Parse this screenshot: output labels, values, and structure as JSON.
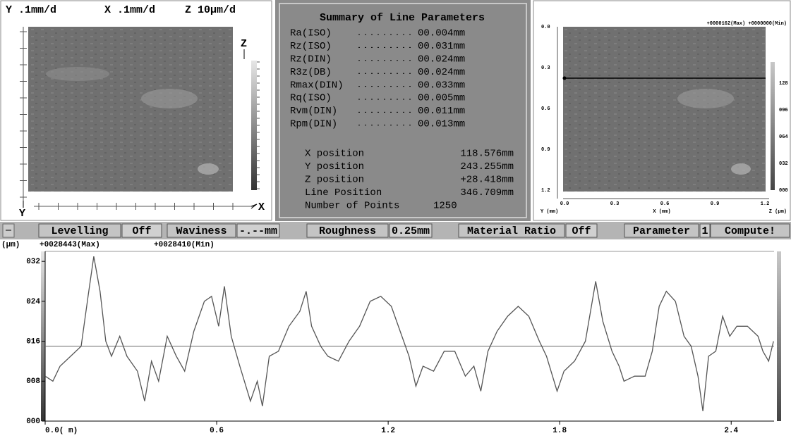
{
  "left_panel": {
    "header": [
      "Y .1mm/d",
      "X .1mm/d",
      "Z 10µm/d"
    ],
    "z_axis": "Z",
    "y_axis": "Y",
    "x_axis": "X"
  },
  "summary": {
    "title": "Summary of Line Parameters",
    "parameters": [
      {
        "name": "Ra(ISO)",
        "value": "00.004mm"
      },
      {
        "name": "Rz(ISO)",
        "value": "00.031mm"
      },
      {
        "name": "Rz(DIN)",
        "value": "00.024mm"
      },
      {
        "name": "R3z(DB)",
        "value": "00.024mm"
      },
      {
        "name": "Rmax(DIN)",
        "value": "00.033mm"
      },
      {
        "name": "Rq(ISO)",
        "value": "00.005mm"
      },
      {
        "name": "Rvm(DIN)",
        "value": "00.011mm"
      },
      {
        "name": "Rpm(DIN)",
        "value": "00.013mm"
      }
    ],
    "positions": [
      {
        "name": "X position",
        "value": "118.576mm"
      },
      {
        "name": "Y position",
        "value": "243.255mm"
      },
      {
        "name": "Z position",
        "value": "+28.418mm"
      },
      {
        "name": "Line Position",
        "value": "346.709mm"
      },
      {
        "name": "Number of Points",
        "value": "1250"
      }
    ]
  },
  "right_panel": {
    "header": "+0000162(Max) +0000000(Min)",
    "y_labels": [
      "0.0",
      "0.3",
      "0.6",
      "0.9",
      "1.2"
    ],
    "x_labels": [
      "0.0",
      "0.3",
      "0.6",
      "0.9",
      "1.2"
    ],
    "z_labels": [
      "128",
      "096",
      "064",
      "032",
      "000"
    ],
    "y_axis": "Y (mm)",
    "x_axis": "X (mm)",
    "z_axis": "Z (µm)"
  },
  "toolbar": [
    {
      "label": "Levelling",
      "value": "Off"
    },
    {
      "label": "Waviness",
      "value": "-.--mm"
    },
    {
      "label": "Roughness",
      "value": "0.25mm"
    },
    {
      "label": "Material Ratio",
      "value": "Off"
    },
    {
      "label": "Parameter",
      "value": "1"
    },
    {
      "label": "Compute!"
    }
  ],
  "chart_data": {
    "type": "line",
    "unit": "(µm)",
    "max_label": "+0028443(Max)",
    "min_label": "+0028410(Min)",
    "color": "#555555",
    "x": [
      0,
      0.027,
      0.052,
      0.089,
      0.126,
      0.15,
      0.17,
      0.192,
      0.212,
      0.232,
      0.261,
      0.286,
      0.323,
      0.348,
      0.372,
      0.397,
      0.427,
      0.459,
      0.488,
      0.52,
      0.557,
      0.582,
      0.607,
      0.627,
      0.651,
      0.681,
      0.718,
      0.742,
      0.76,
      0.784,
      0.816,
      0.853,
      0.891,
      0.913,
      0.932,
      0.964,
      0.989,
      1.026,
      1.063,
      1.1,
      1.137,
      1.174,
      1.211,
      1.248,
      1.273,
      1.297,
      1.322,
      1.359,
      1.396,
      1.433,
      1.47,
      1.5,
      1.524,
      1.549,
      1.581,
      1.618,
      1.655,
      1.692,
      1.729,
      1.754,
      1.791,
      1.815,
      1.852,
      1.89,
      1.926,
      1.951,
      1.983,
      2.008,
      2.025,
      2.062,
      2.099,
      2.124,
      2.148,
      2.173,
      2.205,
      2.235,
      2.26,
      2.284,
      2.301,
      2.321,
      2.346,
      2.37,
      2.395,
      2.42,
      2.457,
      2.494,
      2.511,
      2.531,
      2.548
    ],
    "values": [
      9,
      8,
      11,
      13,
      15,
      25,
      33,
      26,
      16,
      13,
      17,
      13,
      10,
      4,
      12,
      8,
      17,
      13,
      10,
      18,
      24,
      25,
      19,
      27,
      17,
      11,
      4,
      8,
      3,
      13,
      14,
      19,
      22,
      26,
      19,
      15,
      13,
      12,
      16,
      19,
      24,
      25,
      23,
      17,
      13,
      7,
      11,
      10,
      14,
      14,
      9,
      11,
      6,
      14,
      18,
      21,
      23,
      21,
      16,
      13,
      6,
      10,
      12,
      16,
      28,
      20,
      14,
      11,
      8,
      9,
      9,
      14,
      23,
      26,
      24,
      17,
      15,
      9,
      2,
      13,
      14,
      21,
      17,
      19,
      19,
      17,
      14,
      12,
      16
    ],
    "mean_line": 15,
    "xlim": [
      0,
      2.55
    ],
    "ylim": [
      0,
      34
    ],
    "xticks": [
      {
        "value": 0,
        "label": "0.0( m)"
      },
      0.6,
      1.2,
      1.8,
      2.4
    ],
    "yticks": [
      {
        "value": 0,
        "label": "000"
      },
      {
        "value": 8,
        "label": "008"
      },
      {
        "value": 16,
        "label": "016"
      },
      {
        "value": 24,
        "label": "024"
      },
      {
        "value": 32,
        "label": "032"
      }
    ]
  }
}
